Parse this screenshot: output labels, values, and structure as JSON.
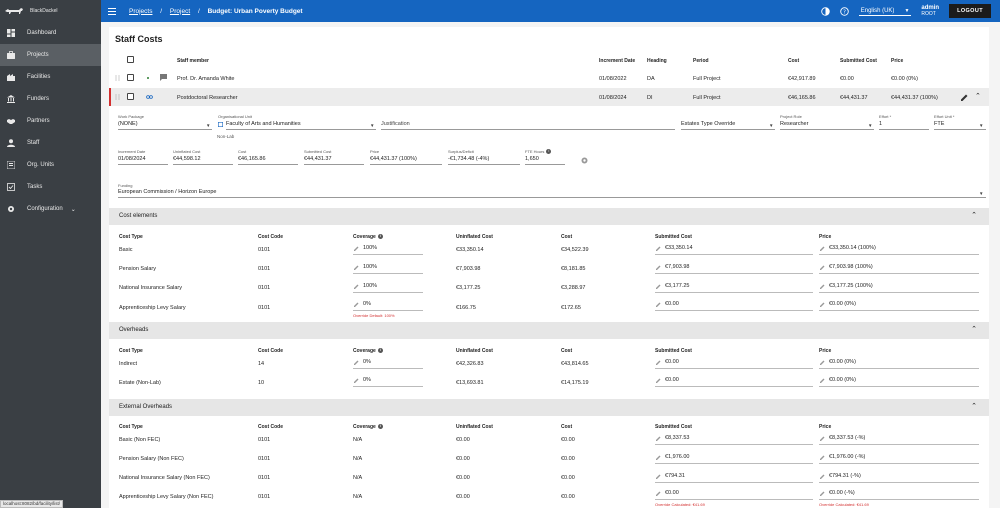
{
  "app": {
    "brand": "BlackDackel"
  },
  "sidebar": {
    "items": [
      {
        "label": "Dashboard",
        "icon": "dashboard-icon"
      },
      {
        "label": "Projects",
        "icon": "briefcase-icon"
      },
      {
        "label": "Facilities",
        "icon": "facility-icon"
      },
      {
        "label": "Funders",
        "icon": "bank-icon"
      },
      {
        "label": "Partners",
        "icon": "handshake-icon"
      },
      {
        "label": "Staff",
        "icon": "person-icon"
      },
      {
        "label": "Org. Units",
        "icon": "org-chart-icon"
      },
      {
        "label": "Tasks",
        "icon": "task-icon"
      },
      {
        "label": "Configuration",
        "icon": "gear-icon"
      }
    ]
  },
  "header": {
    "breadcrumb": [
      "Projects",
      "Project"
    ],
    "current": "Budget: Urban Poverty Budget",
    "language": "English (UK)",
    "user_name": "admin",
    "user_role": "ROOT",
    "logout_label": "LOGOUT"
  },
  "page": {
    "title": "Staff Costs"
  },
  "staff_table": {
    "headers": {
      "member": "Staff member",
      "increment_date": "Increment Date",
      "heading": "Heading",
      "period": "Period",
      "cost": "Cost",
      "submitted": "Submitted Cost",
      "price": "Price"
    },
    "rows": [
      {
        "member": "Prof. Dr. Amanda White",
        "increment_date": "01/08/2022",
        "heading": "DA",
        "period": "Full Project",
        "cost": "€42,917.89",
        "submitted": "€0.00",
        "price": "€0.00 (0%)"
      },
      {
        "member": "Postdoctoral Researcher",
        "increment_date": "01/08/2024",
        "heading": "DI",
        "period": "Full Project",
        "cost": "€46,165.86",
        "submitted": "€44,431.37",
        "price": "€44,431.37 (100%)"
      }
    ]
  },
  "detail": {
    "work_package": {
      "label": "Work Package",
      "value": "(NONE)"
    },
    "org_unit": {
      "label": "Organisational Unit",
      "value": "Faculty of Arts and Humanities",
      "helper": "Non-Lab"
    },
    "justification": {
      "placeholder": "Justification"
    },
    "estates_type": {
      "value": "Estates Type Override"
    },
    "project_role": {
      "label": "Project Role",
      "value": "Researcher"
    },
    "effort": {
      "label": "Effort *",
      "value": "1"
    },
    "effort_unit": {
      "label": "Effort Unit *",
      "value": "FTE"
    },
    "increment_date": {
      "label": "Increment Date",
      "value": "01/08/2024"
    },
    "uninflated_cost": {
      "label": "Uninflated Cost",
      "value": "€44,598.12"
    },
    "cost": {
      "label": "Cost",
      "value": "€46,165.86"
    },
    "submitted_cost": {
      "label": "Submitted Cost",
      "value": "€44,431.37"
    },
    "price": {
      "label": "Price",
      "value": "€44,431.37 (100%)"
    },
    "surplus": {
      "label": "Surplus/Deficit",
      "value": "-€1,734.48 (-4%)"
    },
    "fte_hours": {
      "label": "FTE Hours",
      "value": "1,650"
    },
    "funding": {
      "label": "Funding",
      "value": "European Commission / Horizon Europe"
    }
  },
  "cost_headers": {
    "type": "Cost Type",
    "code": "Cost Code",
    "coverage": "Coverage",
    "uninflated": "Uninflated Cost",
    "cost": "Cost",
    "submitted": "Submitted Cost",
    "price": "Price"
  },
  "cost_elements": {
    "title": "Cost elements",
    "rows": [
      {
        "type": "Basic",
        "code": "0101",
        "coverage": "100%",
        "uninflated": "€33,350.14",
        "cost": "€34,522.39",
        "submitted": "€33,350.14",
        "price": "€33,350.14 (100%)"
      },
      {
        "type": "Pension Salary",
        "code": "0101",
        "coverage": "100%",
        "uninflated": "€7,903.98",
        "cost": "€8,181.85",
        "submitted": "€7,903.98",
        "price": "€7,903.98 (100%)"
      },
      {
        "type": "National Insurance Salary",
        "code": "0101",
        "coverage": "100%",
        "uninflated": "€3,177.25",
        "cost": "€3,288.97",
        "submitted": "€3,177.25",
        "price": "€3,177.25 (100%)"
      },
      {
        "type": "Apprenticeship Levy Salary",
        "code": "0101",
        "coverage": "0%",
        "uninflated": "€166.75",
        "cost": "€172.65",
        "submitted": "€0.00",
        "price": "€0.00 (0%)",
        "warning": "Override Default: 100%"
      }
    ]
  },
  "overheads": {
    "title": "Overheads",
    "rows": [
      {
        "type": "Indirect",
        "code": "14",
        "coverage": "0%",
        "uninflated": "€42,326.83",
        "cost": "€43,814.65",
        "submitted": "€0.00",
        "price": "€0.00 (0%)"
      },
      {
        "type": "Estate (Non-Lab)",
        "code": "10",
        "coverage": "0%",
        "uninflated": "€13,693.81",
        "cost": "€14,175.19",
        "submitted": "€0.00",
        "price": "€0.00 (0%)"
      }
    ]
  },
  "external_overheads": {
    "title": "External Overheads",
    "rows": [
      {
        "type": "Basic (Non FEC)",
        "code": "0101",
        "coverage": "N/A",
        "uninflated": "€0.00",
        "cost": "€0.00",
        "submitted": "€8,337.53",
        "price": "€8,337.53 (-%)"
      },
      {
        "type": "Pension Salary (Non FEC)",
        "code": "0101",
        "coverage": "N/A",
        "uninflated": "€0.00",
        "cost": "€0.00",
        "submitted": "€1,976.00",
        "price": "€1,976.00 (-%)"
      },
      {
        "type": "National Insurance Salary (Non FEC)",
        "code": "0101",
        "coverage": "N/A",
        "uninflated": "€0.00",
        "cost": "€0.00",
        "submitted": "€794.31",
        "price": "€794.31 (-%)"
      },
      {
        "type": "Apprenticeship Levy Salary (Non FEC)",
        "code": "0101",
        "coverage": "N/A",
        "uninflated": "€0.00",
        "cost": "€0.00",
        "submitted": "€0.00",
        "price": "€0.00 (-%)",
        "warning_submitted": "Override Calculated: €41.69",
        "warning_price": "Override Calculated: €41.69"
      }
    ]
  },
  "status_url": "localhost:8082/bd/facility/list/",
  "colors": {
    "topbar": "#1565c0",
    "sidebar": "#3a3f44",
    "accent_mark": "#d32f2f"
  }
}
